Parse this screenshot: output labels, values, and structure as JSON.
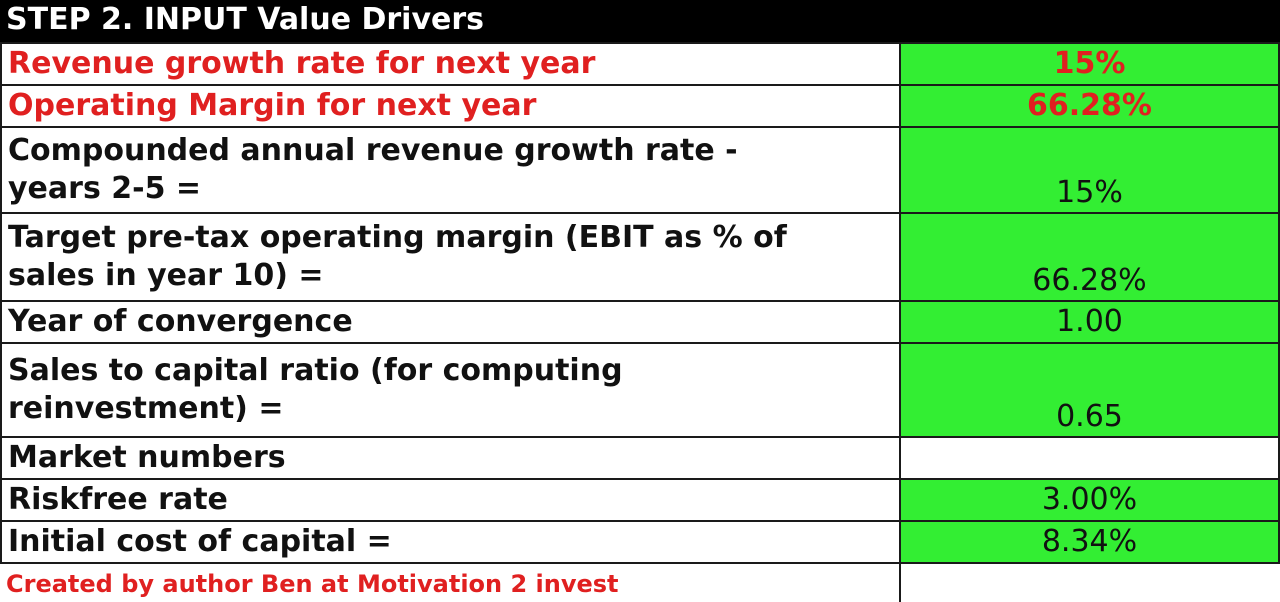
{
  "title": "STEP 2. INPUT Value Drivers",
  "rows": [
    {
      "label": "Revenue growth rate for next year",
      "value": "15%"
    },
    {
      "label": "Operating Margin for next year",
      "value": "66.28%"
    },
    {
      "label": "Compounded annual revenue growth rate -\nyears 2-5 =",
      "value": "15%"
    },
    {
      "label": "Target pre-tax operating margin (EBIT as % of\nsales in year 10) =",
      "value": "66.28%"
    },
    {
      "label": "Year of convergence",
      "value": "1.00"
    },
    {
      "label": "Sales to capital ratio  (for computing\nreinvestment) =",
      "value": "0.65"
    },
    {
      "label": "Market numbers",
      "value": ""
    },
    {
      "label": "Riskfree rate",
      "value": "3.00%"
    },
    {
      "label": "Initial cost of capital =",
      "value": "8.34%"
    }
  ],
  "footer": "Created by author Ben at Motivation 2 invest",
  "colors": {
    "header_bg": "#000000",
    "highlight_red": "#e02020",
    "value_cell_green": "#33ee33"
  }
}
